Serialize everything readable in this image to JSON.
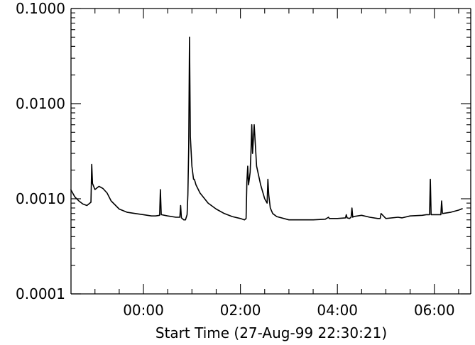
{
  "chart_data": {
    "type": "line",
    "title": "",
    "xlabel": "Start Time (27-Aug-99 22:30:21)",
    "ylabel": "",
    "y_scale": "log",
    "ylim": [
      0.0001,
      0.1
    ],
    "xlim": [
      "27-Aug-99 22:30:21",
      "28-Aug-99 06:45:00"
    ],
    "y_ticks": [
      {
        "value": 0.0001,
        "label": "0.0001"
      },
      {
        "value": 0.001,
        "label": "0.0010"
      },
      {
        "value": 0.01,
        "label": "0.0100"
      },
      {
        "value": 0.1,
        "label": "0.1000"
      }
    ],
    "x_ticks": [
      {
        "value": "28-Aug-99 00:00",
        "label": "00:00"
      },
      {
        "value": "28-Aug-99 02:00",
        "label": "02:00"
      },
      {
        "value": "28-Aug-99 04:00",
        "label": "04:00"
      },
      {
        "value": "28-Aug-99 06:00",
        "label": "06:00"
      }
    ],
    "grid": false,
    "line_color": "#000000",
    "series": [
      {
        "x": [
          "27-Aug-99 22:30",
          "27-Aug-99 22:35",
          "27-Aug-99 22:40",
          "27-Aug-99 22:45",
          "27-Aug-99 22:50",
          "27-Aug-99 22:55",
          "27-Aug-99 22:56",
          "27-Aug-99 22:57",
          "27-Aug-99 23:00",
          "27-Aug-99 23:05",
          "27-Aug-99 23:10",
          "27-Aug-99 23:15",
          "27-Aug-99 23:20",
          "27-Aug-99 23:30",
          "27-Aug-99 23:40",
          "27-Aug-99 23:50",
          "28-Aug-99 00:00",
          "28-Aug-99 00:10",
          "28-Aug-99 00:15",
          "28-Aug-99 00:20",
          "28-Aug-99 00:21",
          "28-Aug-99 00:22",
          "28-Aug-99 00:30",
          "28-Aug-99 00:40",
          "28-Aug-99 00:45",
          "28-Aug-99 00:46",
          "28-Aug-99 00:47",
          "28-Aug-99 00:50",
          "28-Aug-99 00:52",
          "28-Aug-99 00:54",
          "28-Aug-99 00:55",
          "28-Aug-99 00:56",
          "28-Aug-99 00:57",
          "28-Aug-99 00:58",
          "28-Aug-99 01:00",
          "28-Aug-99 01:02",
          "28-Aug-99 01:03",
          "28-Aug-99 01:04",
          "28-Aug-99 01:05",
          "28-Aug-99 01:10",
          "28-Aug-99 01:20",
          "28-Aug-99 01:30",
          "28-Aug-99 01:40",
          "28-Aug-99 01:50",
          "28-Aug-99 02:00",
          "28-Aug-99 02:05",
          "28-Aug-99 02:07",
          "28-Aug-99 02:08",
          "28-Aug-99 02:09",
          "28-Aug-99 02:10",
          "28-Aug-99 02:11",
          "28-Aug-99 02:12",
          "28-Aug-99 02:13",
          "28-Aug-99 02:14",
          "28-Aug-99 02:15",
          "28-Aug-99 02:17",
          "28-Aug-99 02:20",
          "28-Aug-99 02:25",
          "28-Aug-99 02:30",
          "28-Aug-99 02:33",
          "28-Aug-99 02:34",
          "28-Aug-99 02:35",
          "28-Aug-99 02:37",
          "28-Aug-99 02:40",
          "28-Aug-99 02:45",
          "28-Aug-99 03:00",
          "28-Aug-99 03:15",
          "28-Aug-99 03:30",
          "28-Aug-99 03:45",
          "28-Aug-99 03:49",
          "28-Aug-99 03:50",
          "28-Aug-99 04:00",
          "28-Aug-99 04:10",
          "28-Aug-99 04:11",
          "28-Aug-99 04:12",
          "28-Aug-99 04:15",
          "28-Aug-99 04:17",
          "28-Aug-99 04:18",
          "28-Aug-99 04:19",
          "28-Aug-99 04:20",
          "28-Aug-99 04:30",
          "28-Aug-99 04:40",
          "28-Aug-99 04:50",
          "28-Aug-99 04:53",
          "28-Aug-99 04:54",
          "28-Aug-99 05:00",
          "28-Aug-99 05:15",
          "28-Aug-99 05:20",
          "28-Aug-99 05:30",
          "28-Aug-99 05:45",
          "28-Aug-99 05:50",
          "28-Aug-99 05:54",
          "28-Aug-99 05:55",
          "28-Aug-99 05:56",
          "28-Aug-99 06:00",
          "28-Aug-99 06:08",
          "28-Aug-99 06:09",
          "28-Aug-99 06:10",
          "28-Aug-99 06:20",
          "28-Aug-99 06:30",
          "28-Aug-99 06:35"
        ],
        "y": [
          0.00125,
          0.00105,
          0.00095,
          0.00088,
          0.00085,
          0.00092,
          0.0023,
          0.00145,
          0.00125,
          0.00135,
          0.00128,
          0.00115,
          0.00095,
          0.00078,
          0.00072,
          0.0007,
          0.00068,
          0.00066,
          0.00066,
          0.00067,
          0.00125,
          0.00068,
          0.00066,
          0.00064,
          0.00064,
          0.00085,
          0.00063,
          0.0006,
          0.0006,
          0.00068,
          0.0011,
          0.0035,
          0.05,
          0.0045,
          0.0022,
          0.0016,
          0.0016,
          0.0015,
          0.0014,
          0.00115,
          0.0009,
          0.00078,
          0.0007,
          0.00065,
          0.00062,
          0.0006,
          0.00062,
          0.0015,
          0.0022,
          0.0014,
          0.0016,
          0.0019,
          0.003,
          0.006,
          0.003,
          0.006,
          0.0022,
          0.0014,
          0.001,
          0.0009,
          0.0016,
          0.0011,
          0.0008,
          0.0007,
          0.00065,
          0.0006,
          0.0006,
          0.0006,
          0.00061,
          0.00064,
          0.00062,
          0.00062,
          0.00063,
          0.00068,
          0.00063,
          0.00062,
          0.00064,
          0.0008,
          0.00064,
          0.00065,
          0.00067,
          0.00064,
          0.00062,
          0.00062,
          0.0007,
          0.00062,
          0.00064,
          0.00063,
          0.00066,
          0.00067,
          0.00068,
          0.00068,
          0.0016,
          0.00068,
          0.00068,
          0.00068,
          0.00095,
          0.0007,
          0.00072,
          0.00076,
          0.00079
        ]
      }
    ]
  }
}
